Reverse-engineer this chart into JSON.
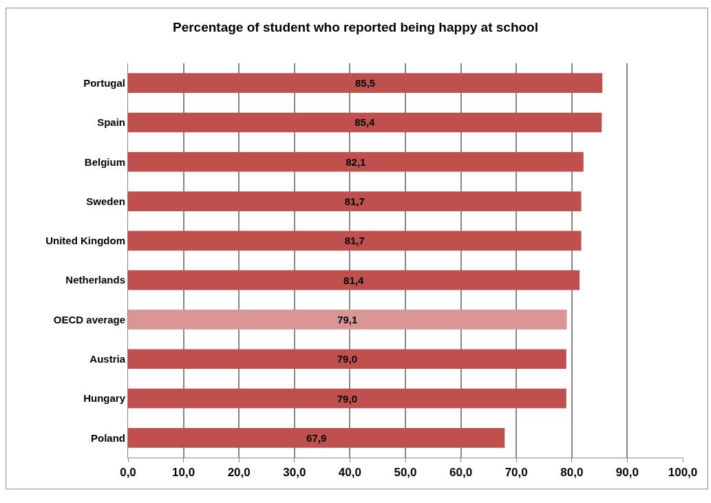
{
  "chart_data": {
    "type": "bar",
    "orientation": "horizontal",
    "title": "Percentage of student who reported being happy at school",
    "categories": [
      "Portugal",
      "Spain",
      "Belgium",
      "Sweden",
      "United Kingdom",
      "Netherlands",
      "OECD average",
      "Austria",
      "Hungary",
      "Poland"
    ],
    "values": [
      85.5,
      85.4,
      82.1,
      81.7,
      81.7,
      81.4,
      79.1,
      79.0,
      79.0,
      67.9
    ],
    "value_labels": [
      "85,5",
      "85,4",
      "82,1",
      "81,7",
      "81,7",
      "81,4",
      "79,1",
      "79,0",
      "79,0",
      "67,9"
    ],
    "colors": [
      "#c0504d",
      "#c0504d",
      "#c0504d",
      "#c0504d",
      "#c0504d",
      "#c0504d",
      "#d99694",
      "#c0504d",
      "#c0504d",
      "#c0504d"
    ],
    "xlim": [
      0,
      100
    ],
    "xticks": [
      {
        "value": 0,
        "label": "0,0"
      },
      {
        "value": 10,
        "label": "10,0"
      },
      {
        "value": 20,
        "label": "20,0"
      },
      {
        "value": 30,
        "label": "30,0"
      },
      {
        "value": 40,
        "label": "40,0"
      },
      {
        "value": 50,
        "label": "50,0"
      },
      {
        "value": 60,
        "label": "60,0"
      },
      {
        "value": 70,
        "label": "70,0"
      },
      {
        "value": 80,
        "label": "80,0"
      },
      {
        "value": 90,
        "label": "90,0"
      },
      {
        "value": 100,
        "label": "100,0"
      }
    ],
    "grid": "x"
  }
}
